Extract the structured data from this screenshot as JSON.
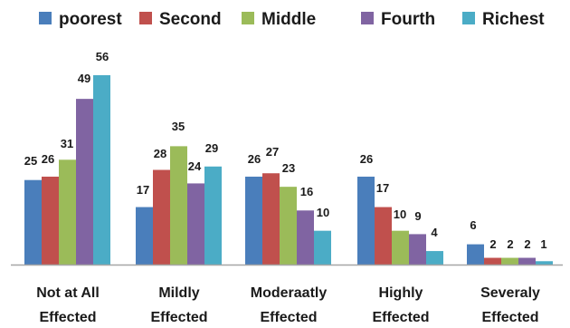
{
  "chart_data": {
    "type": "bar",
    "title": "",
    "xlabel": "",
    "ylabel": "",
    "categories": [
      [
        "Not at All",
        "Effected"
      ],
      [
        "Mildly",
        "Effected"
      ],
      [
        "Moderaatly",
        "Effected"
      ],
      [
        "Highly",
        "Effected"
      ],
      [
        "Severaly",
        "Effected"
      ]
    ],
    "series": [
      {
        "name": "poorest",
        "color": "#4a7ebb",
        "values": [
          25,
          17,
          26,
          26,
          6
        ]
      },
      {
        "name": "Second",
        "color": "#c0504d",
        "values": [
          26,
          28,
          27,
          17,
          2
        ]
      },
      {
        "name": "Middle",
        "color": "#9bbb59",
        "values": [
          31,
          35,
          23,
          10,
          2
        ]
      },
      {
        "name": "Fourth",
        "color": "#8064a2",
        "values": [
          49,
          24,
          16,
          9,
          2
        ]
      },
      {
        "name": "Richest",
        "color": "#4bacc6",
        "values": [
          56,
          29,
          10,
          4,
          1
        ]
      }
    ],
    "ylim": [
      0,
      56
    ],
    "legend_position": "top",
    "grid": false,
    "axis_color": "#a6a6a6"
  }
}
